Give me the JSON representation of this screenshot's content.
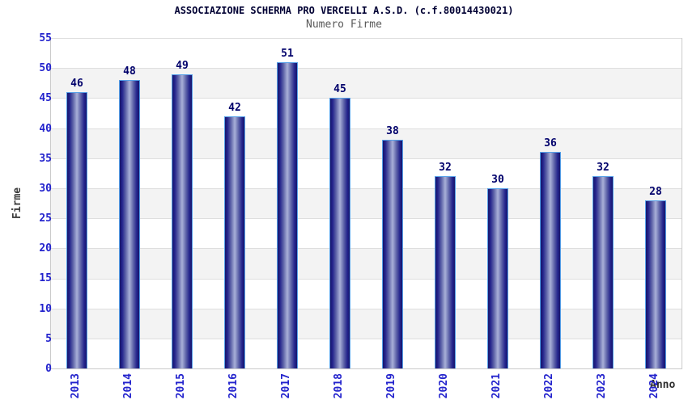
{
  "chart_data": {
    "type": "bar",
    "title": "ASSOCIAZIONE SCHERMA PRO VERCELLI A.S.D. (c.f.80014430021)",
    "subtitle": "Numero Firme",
    "xlabel": "Anno",
    "ylabel": "Firme",
    "categories": [
      "2013",
      "2014",
      "2015",
      "2016",
      "2017",
      "2018",
      "2019",
      "2020",
      "2021",
      "2022",
      "2023",
      "2024"
    ],
    "values": [
      46,
      48,
      49,
      42,
      51,
      45,
      38,
      32,
      30,
      36,
      32,
      28
    ],
    "y_ticks": [
      0,
      5,
      10,
      15,
      20,
      25,
      30,
      35,
      40,
      45,
      50,
      55
    ],
    "ylim": [
      0,
      55
    ],
    "grid": "horizontal",
    "background_bands": "alternating white / light gray every 5 units",
    "legend": "none",
    "colors": {
      "bar_dark": "#17176b",
      "bar_light": "#a9b0d8",
      "bar_border": "#56a0e8",
      "value_label": "#00006b",
      "tick_label": "#2323cd",
      "band_gray": "#f3f3f3",
      "gridline": "#dedede",
      "title": "#000033",
      "subtitle": "#5a5a5a"
    }
  }
}
